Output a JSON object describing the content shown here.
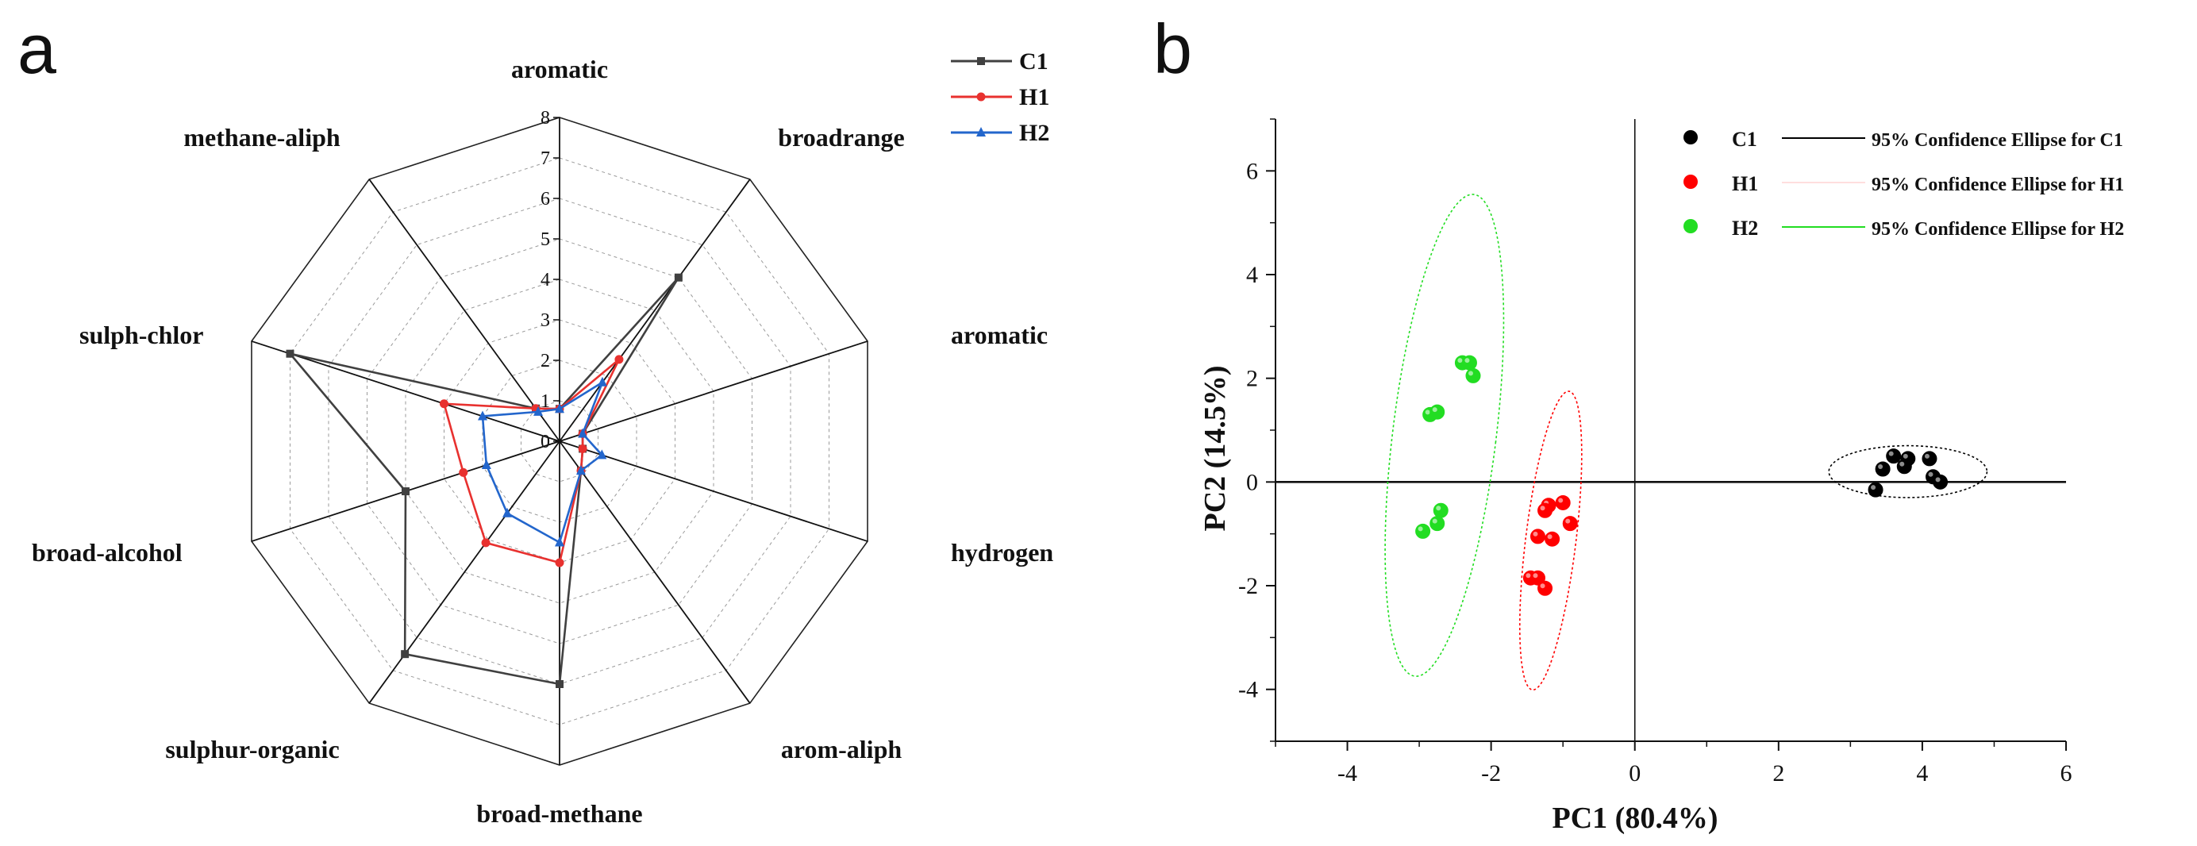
{
  "chart_data": [
    {
      "type": "radar",
      "panel_label": "a",
      "axes": [
        "aromatic",
        "broadrange",
        "aromatic",
        "hydrogen",
        "arom-aliph",
        "broad-methane",
        "sulphur-organic",
        "broad-alcohol",
        "sulph-chlor",
        "methane-aliph"
      ],
      "rlim": [
        0,
        8
      ],
      "ticks": [
        "0",
        "1",
        "2",
        "3",
        "4",
        "5",
        "6",
        "7",
        "8"
      ],
      "series": [
        {
          "name": "C1",
          "color": "#404040",
          "marker": "square",
          "values": [
            0.8,
            5.0,
            0.6,
            0.6,
            0.9,
            6.0,
            6.5,
            4.0,
            7.0,
            1.0
          ]
        },
        {
          "name": "H1",
          "color": "#e8312f",
          "marker": "circle",
          "values": [
            0.8,
            2.5,
            0.6,
            0.6,
            0.9,
            3.0,
            3.1,
            2.5,
            3.0,
            1.0
          ]
        },
        {
          "name": "H2",
          "color": "#2366cc",
          "marker": "triangle",
          "values": [
            0.8,
            1.8,
            0.6,
            1.1,
            0.9,
            2.5,
            2.2,
            1.9,
            2.0,
            0.9
          ]
        }
      ]
    },
    {
      "type": "scatter",
      "panel_label": "b",
      "xlabel": "PC1 (80.4%)",
      "ylabel": "PC2 (14.5%)",
      "xlim": [
        -5,
        6
      ],
      "ylim": [
        -5,
        7
      ],
      "xticks": [
        "-4",
        "-2",
        "0",
        "2",
        "4",
        "6"
      ],
      "yticks": [
        "-4",
        "-2",
        "0",
        "2",
        "4",
        "6"
      ],
      "series": [
        {
          "name": "C1",
          "color": "#000000",
          "points": [
            [
              3.6,
              0.5
            ],
            [
              3.8,
              0.45
            ],
            [
              4.1,
              0.45
            ],
            [
              3.45,
              0.25
            ],
            [
              3.75,
              0.3
            ],
            [
              4.15,
              0.1
            ],
            [
              4.25,
              0.0
            ],
            [
              3.35,
              -0.15
            ]
          ]
        },
        {
          "name": "H1",
          "color": "#ff0000",
          "points": [
            [
              -1.0,
              -0.4
            ],
            [
              -1.2,
              -0.45
            ],
            [
              -1.25,
              -0.55
            ],
            [
              -0.9,
              -0.8
            ],
            [
              -1.35,
              -1.05
            ],
            [
              -1.15,
              -1.1
            ],
            [
              -1.45,
              -1.85
            ],
            [
              -1.35,
              -1.85
            ],
            [
              -1.25,
              -2.05
            ]
          ]
        },
        {
          "name": "H2",
          "color": "#22dd22",
          "points": [
            [
              -2.4,
              2.3
            ],
            [
              -2.3,
              2.3
            ],
            [
              -2.25,
              2.05
            ],
            [
              -2.85,
              1.3
            ],
            [
              -2.75,
              1.35
            ],
            [
              -2.7,
              -0.55
            ],
            [
              -2.75,
              -0.8
            ],
            [
              -2.95,
              -0.95
            ]
          ]
        }
      ],
      "ellipses": [
        {
          "name": "C1",
          "color": "#000000",
          "cx": 3.8,
          "cy": 0.2,
          "rx": 1.1,
          "ry": 0.5,
          "angle_deg": 0
        },
        {
          "name": "H1",
          "color": "#ff0000",
          "cx": -1.17,
          "cy": -1.13,
          "rx": 0.35,
          "ry": 2.9,
          "angle_deg": 7
        },
        {
          "name": "H2",
          "color": "#22dd22",
          "cx": -2.65,
          "cy": 0.9,
          "rx": 0.72,
          "ry": 4.68,
          "angle_deg": 7
        }
      ],
      "legend": {
        "position": "top-right",
        "entries": [
          {
            "name": "C1",
            "ellipse_label": "95% Confidence Ellipse for C1",
            "color": "#000000"
          },
          {
            "name": "H1",
            "ellipse_label": "95% Confidence Ellipse for H1",
            "color": "#ff0000"
          },
          {
            "name": "H2",
            "ellipse_label": "95% Confidence Ellipse for H2",
            "color": "#22dd22"
          }
        ]
      }
    }
  ]
}
